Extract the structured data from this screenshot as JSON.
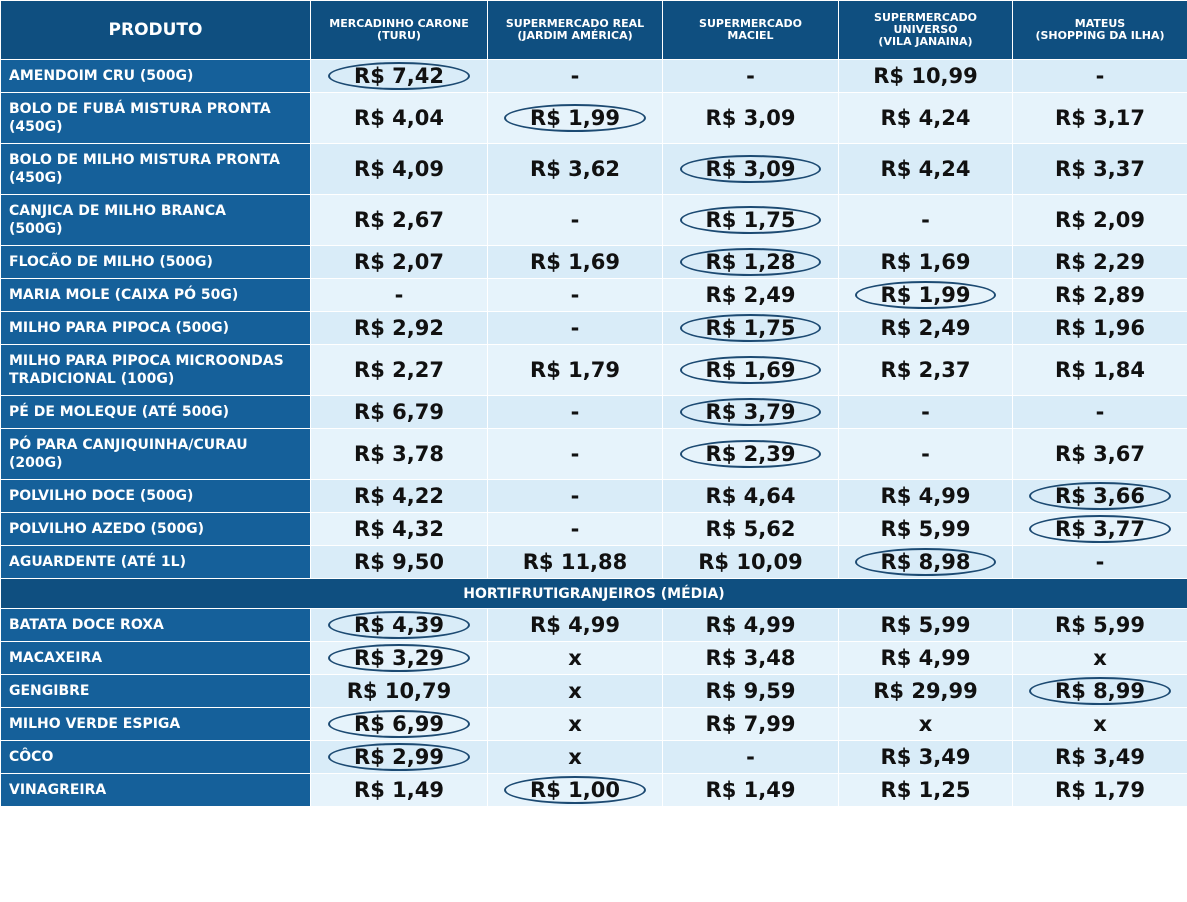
{
  "table": {
    "columns": [
      "PRODUTO",
      "MERCADINHO CARONE\n(TURU)",
      "SUPERMERCADO REAL\n(JARDIM AMÉRICA)",
      "SUPERMERCADO\nMACIEL",
      "SUPERMERCADO\nUNIVERSO\n(VILA JANAINA)",
      "MATEUS\n(SHOPPING DA ILHA)"
    ],
    "groups": [
      {
        "rows": [
          {
            "cells": [
              "AMENDOIM CRU (500G)",
              "R$ 7,42",
              "-",
              "-",
              "R$ 10,99",
              "-"
            ],
            "circled": [
              1
            ]
          },
          {
            "cells": [
              "BOLO DE FUBÁ MISTURA PRONTA\n(450G)",
              "R$ 4,04",
              "R$ 1,99",
              "R$ 3,09",
              "R$ 4,24",
              "R$ 3,17"
            ],
            "circled": [
              2
            ]
          },
          {
            "cells": [
              "BOLO DE MILHO MISTURA PRONTA\n(450G)",
              "R$ 4,09",
              "R$ 3,62",
              "R$ 3,09",
              "R$ 4,24",
              "R$ 3,37"
            ],
            "circled": [
              3
            ]
          },
          {
            "cells": [
              "CANJICA DE MILHO BRANCA\n(500G)",
              "R$ 2,67",
              "-",
              "R$ 1,75",
              "-",
              "R$ 2,09"
            ],
            "circled": [
              3
            ]
          },
          {
            "cells": [
              "FLOCÃO DE MILHO (500G)",
              "R$ 2,07",
              "R$ 1,69",
              "R$ 1,28",
              "R$ 1,69",
              "R$ 2,29"
            ],
            "circled": [
              3
            ]
          },
          {
            "cells": [
              "MARIA MOLE (CAIXA PÓ 50G)",
              "-",
              "-",
              "R$ 2,49",
              "R$ 1,99",
              "R$ 2,89"
            ],
            "circled": [
              4
            ]
          },
          {
            "cells": [
              "MILHO PARA PIPOCA (500G)",
              "R$ 2,92",
              "-",
              "R$ 1,75",
              "R$ 2,49",
              "R$ 1,96"
            ],
            "circled": [
              3
            ]
          },
          {
            "cells": [
              "MILHO PARA PIPOCA MICROONDAS\nTRADICIONAL (100G)",
              "R$ 2,27",
              "R$ 1,79",
              "R$ 1,69",
              "R$ 2,37",
              "R$ 1,84"
            ],
            "circled": [
              3
            ]
          },
          {
            "cells": [
              "PÉ DE MOLEQUE (ATÉ 500G)",
              "R$ 6,79",
              "-",
              "R$ 3,79",
              "-",
              "-"
            ],
            "circled": [
              3
            ]
          },
          {
            "cells": [
              "PÓ PARA CANJIQUINHA/CURAU\n(200G)",
              "R$ 3,78",
              "-",
              "R$ 2,39",
              "-",
              "R$ 3,67"
            ],
            "circled": [
              3
            ]
          },
          {
            "cells": [
              "POLVILHO DOCE (500G)",
              "R$ 4,22",
              "-",
              "R$ 4,64",
              "R$ 4,99",
              "R$ 3,66"
            ],
            "circled": [
              5
            ]
          },
          {
            "cells": [
              "POLVILHO AZEDO (500G)",
              "R$ 4,32",
              "-",
              "R$ 5,62",
              "R$ 5,99",
              "R$ 3,77"
            ],
            "circled": [
              5
            ]
          },
          {
            "cells": [
              "AGUARDENTE (ATÉ 1L)",
              "R$ 9,50",
              "R$ 11,88",
              "R$ 10,09",
              "R$ 8,98",
              "-"
            ],
            "circled": [
              4
            ]
          }
        ]
      },
      {
        "title": "HORTIFRUTIGRANJEIROS (MÉDIA)",
        "rows": [
          {
            "cells": [
              "BATATA DOCE ROXA",
              "R$ 4,39",
              "R$ 4,99",
              "R$ 4,99",
              "R$ 5,99",
              "R$ 5,99"
            ],
            "circled": [
              1
            ]
          },
          {
            "cells": [
              "MACAXEIRA",
              "R$ 3,29",
              "x",
              "R$ 3,48",
              "R$ 4,99",
              "x"
            ],
            "circled": [
              1
            ]
          },
          {
            "cells": [
              "GENGIBRE",
              "R$ 10,79",
              "x",
              "R$ 9,59",
              "R$ 29,99",
              "R$ 8,99"
            ],
            "circled": [
              5
            ]
          },
          {
            "cells": [
              "MILHO VERDE ESPIGA",
              "R$ 6,99",
              "x",
              "R$ 7,99",
              "x",
              "x"
            ],
            "circled": [
              1
            ]
          },
          {
            "cells": [
              "CÔCO",
              "R$ 2,99",
              "x",
              "-",
              "R$ 3,49",
              "R$ 3,49"
            ],
            "circled": [
              1
            ]
          },
          {
            "cells": [
              "VINAGREIRA",
              "R$ 1,49",
              "R$ 1,00",
              "R$ 1,49",
              "R$ 1,25",
              "R$ 1,79"
            ],
            "circled": [
              2
            ]
          }
        ]
      }
    ]
  }
}
